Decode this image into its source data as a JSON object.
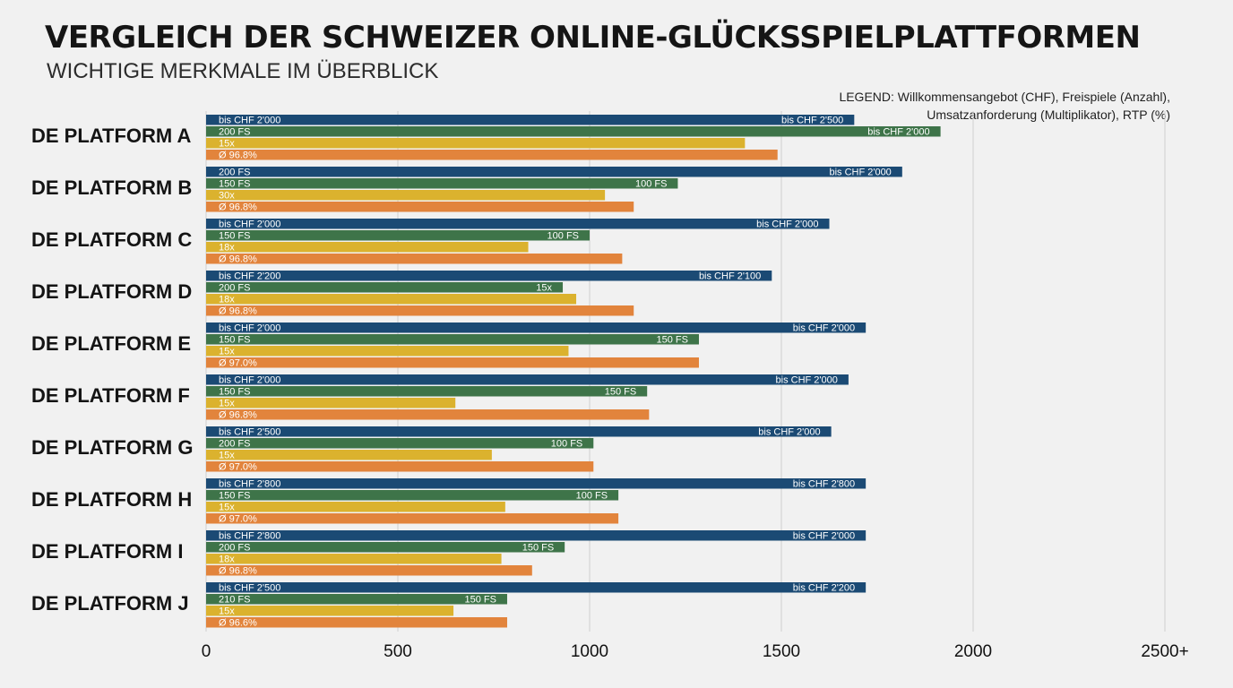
{
  "header": {
    "title": "VERGLEICH DER SCHWEIZER ONLINE-GLÜCKSSPIELPLATTFORMEN",
    "subtitle": "WICHTIGE MERKMALE IM ÜBERBLICK",
    "legend": "LEGEND: Willkommensangebot (CHF), Freispiele (Anzahl), Umsatzanforderung (Multiplikator), RTP (%)"
  },
  "colors": {
    "series": [
      "#1b4a74",
      "#3e7449",
      "#dbb22e",
      "#e2843c"
    ],
    "grid": "#cfcfcf"
  },
  "chart_data": {
    "type": "bar",
    "orientation": "horizontal",
    "title": "VERGLEICH DER SCHWEIZER ONLINE-GLÜCKSSPIELPLATTFORMEN",
    "subtitle": "WICHTIGE MERKMALE IM ÜBERBLICK",
    "categories": [
      "DE PLATFORM A",
      "DE PLATFORM B",
      "DE PLATFORM C",
      "DE PLATFORM D",
      "DE PLATFORM E",
      "DE PLATFORM F",
      "DE PLATFORM G",
      "DE PLATFORM H",
      "DE PLATFORM I",
      "DE PLATFORM J"
    ],
    "xlim": [
      0,
      2500
    ],
    "xticks": [
      "0",
      "500",
      "1000",
      "1500",
      "2000",
      "2500+"
    ],
    "grid": true,
    "legend_position": "top-right",
    "series": [
      {
        "values": [
          1690,
          1815,
          1625,
          1475,
          1720,
          1675,
          1630,
          1720,
          1720,
          1720
        ],
        "inner_labels": [
          "bis CHF 2'000",
          "200 FS",
          "bis CHF 2'000",
          "bis CHF 2'200",
          "bis CHF 2'000",
          "bis CHF 2'000",
          "bis CHF 2'500",
          "bis CHF 2'800",
          "bis CHF 2'800",
          "bis CHF 2'500"
        ],
        "end_labels": [
          "bis CHF 2'500",
          "bis CHF 2'000",
          "bis CHF 2'000",
          "bis CHF 2'100",
          "bis CHF 2'000",
          "bis CHF 2'000",
          "bis CHF 2'000",
          "bis CHF 2'800",
          "bis CHF 2'000",
          "bis CHF 2'200"
        ]
      },
      {
        "values": [
          1915,
          1230,
          1000,
          930,
          1285,
          1150,
          1010,
          1075,
          935,
          785
        ],
        "inner_labels": [
          "200 FS",
          "150 FS",
          "150 FS",
          "200 FS",
          "150 FS",
          "150 FS",
          "200 FS",
          "150 FS",
          "200 FS",
          "210 FS"
        ],
        "end_labels": [
          "bis CHF 2'000",
          "100 FS",
          "100 FS",
          "15x",
          "150 FS",
          "150 FS",
          "100 FS",
          "100 FS",
          "150 FS",
          "150 FS"
        ]
      },
      {
        "values": [
          1405,
          1040,
          840,
          965,
          945,
          650,
          745,
          780,
          770,
          645
        ],
        "inner_labels": [
          "15x",
          "30x",
          "18x",
          "18x",
          "15x",
          "15x",
          "15x",
          "15x",
          "18x",
          "15x"
        ],
        "end_labels": [
          "",
          "",
          "",
          "",
          "",
          "",
          "",
          "",
          "",
          ""
        ]
      },
      {
        "values": [
          1490,
          1115,
          1085,
          1115,
          1285,
          1155,
          1010,
          1075,
          850,
          785
        ],
        "inner_labels": [
          "Ø 96.8%",
          "Ø 96.8%",
          "Ø 96.8%",
          "Ø 96.8%",
          "Ø 97.0%",
          "Ø 96.8%",
          "Ø 97.0%",
          "Ø 97.0%",
          "Ø 96.8%",
          "Ø 96.6%"
        ],
        "end_labels": [
          "",
          "",
          "",
          "",
          "",
          "",
          "",
          "",
          "",
          ""
        ]
      }
    ]
  }
}
